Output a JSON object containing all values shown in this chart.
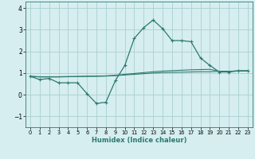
{
  "title": "",
  "xlabel": "Humidex (Indice chaleur)",
  "background_color": "#d6eef0",
  "grid_color": "#aacfcf",
  "line_color": "#2d7a6e",
  "x_ticks": [
    0,
    1,
    2,
    3,
    4,
    5,
    6,
    7,
    8,
    9,
    10,
    11,
    12,
    13,
    14,
    15,
    16,
    17,
    18,
    19,
    20,
    21,
    22,
    23
  ],
  "ylim": [
    -1.5,
    4.3
  ],
  "xlim": [
    -0.5,
    23.5
  ],
  "yticks": [
    -1,
    0,
    1,
    2,
    3,
    4
  ],
  "series": {
    "line1": {
      "x": [
        0,
        1,
        2,
        3,
        4,
        5,
        6,
        7,
        8,
        9,
        10,
        11,
        12,
        13,
        14,
        15,
        16,
        17,
        18,
        19,
        20,
        21,
        22,
        23
      ],
      "y": [
        0.85,
        0.7,
        0.75,
        0.55,
        0.55,
        0.55,
        0.05,
        -0.4,
        -0.35,
        0.65,
        1.35,
        2.6,
        3.1,
        3.45,
        3.05,
        2.5,
        2.5,
        2.45,
        1.7,
        1.35,
        1.05,
        1.05,
        1.1,
        1.1
      ]
    },
    "line2": {
      "x": [
        0,
        1,
        2,
        3,
        4,
        5,
        6,
        7,
        8,
        9,
        10,
        11,
        12,
        13,
        14,
        15,
        16,
        17,
        18,
        19,
        20,
        21,
        22,
        23
      ],
      "y": [
        0.85,
        0.82,
        0.82,
        0.82,
        0.83,
        0.84,
        0.85,
        0.86,
        0.87,
        0.9,
        0.94,
        0.98,
        1.02,
        1.06,
        1.09,
        1.11,
        1.13,
        1.15,
        1.16,
        1.17,
        1.08,
        1.08,
        1.1,
        1.1
      ]
    },
    "line3": {
      "x": [
        0,
        1,
        2,
        3,
        4,
        5,
        6,
        7,
        8,
        9,
        10,
        11,
        12,
        13,
        14,
        15,
        16,
        17,
        18,
        19,
        20,
        21,
        22,
        23
      ],
      "y": [
        0.85,
        0.83,
        0.83,
        0.83,
        0.84,
        0.84,
        0.85,
        0.85,
        0.86,
        0.88,
        0.91,
        0.94,
        0.97,
        1.0,
        1.02,
        1.03,
        1.04,
        1.05,
        1.06,
        1.06,
        1.08,
        1.08,
        1.1,
        1.1
      ]
    }
  }
}
